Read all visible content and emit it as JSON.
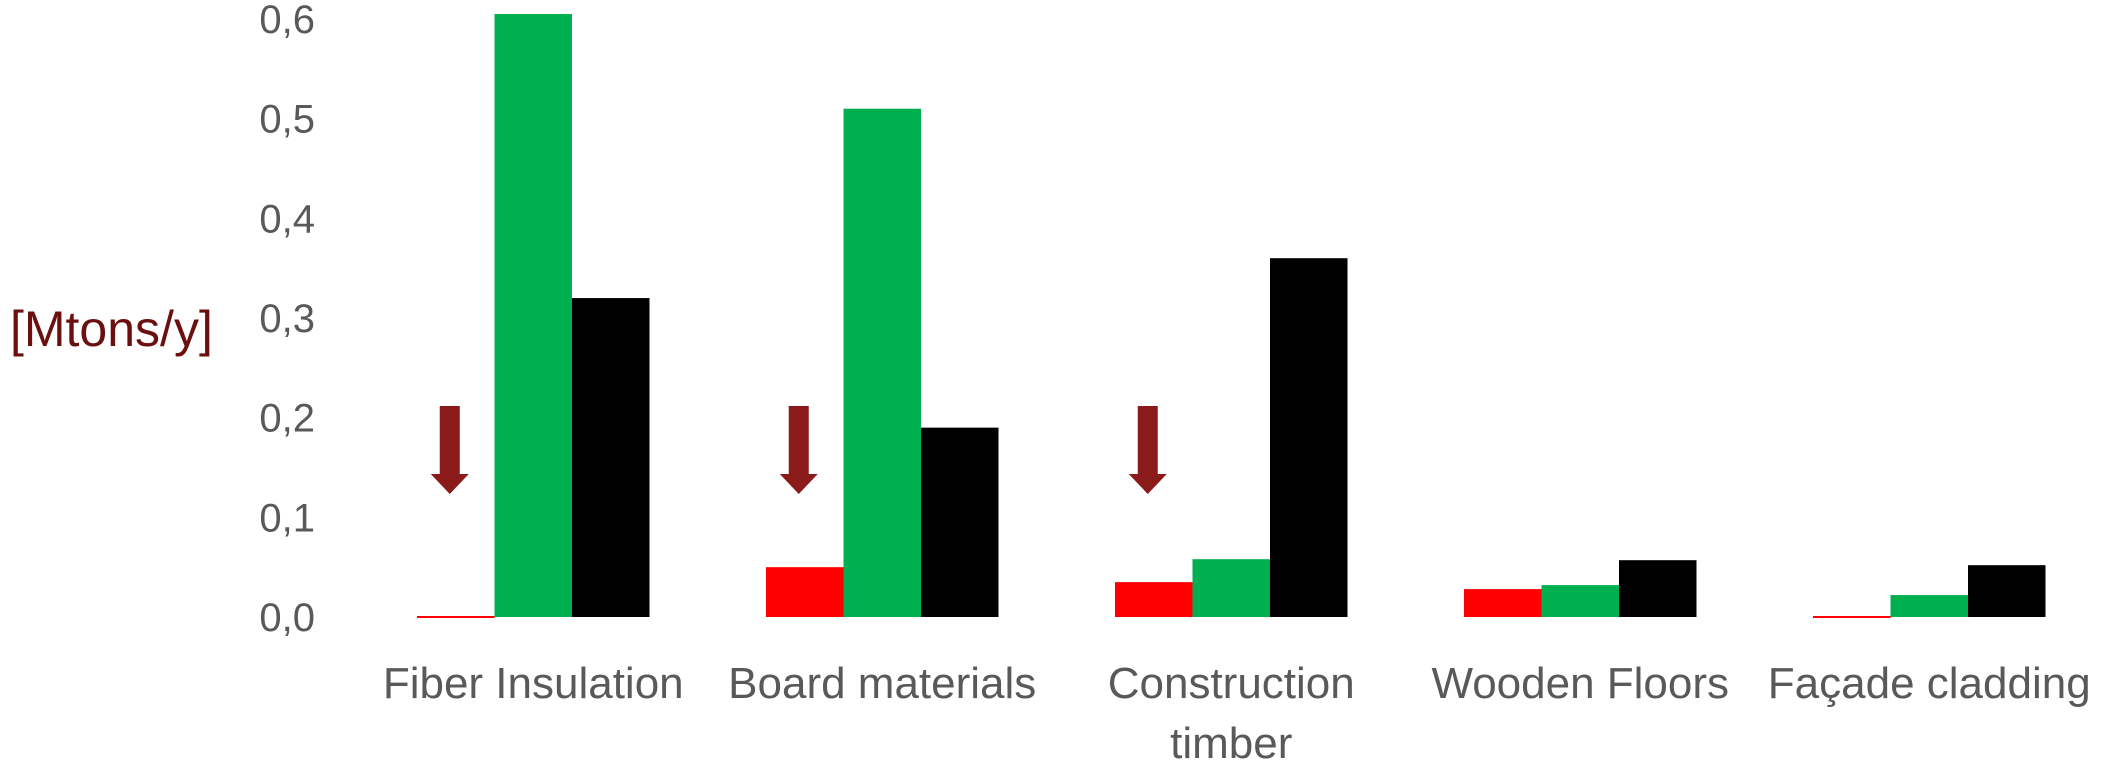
{
  "chart_data": {
    "type": "bar",
    "ylabel": "[Mtons/y]",
    "ylim": [
      0,
      0.6
    ],
    "yticks": [
      "0,0",
      "0,1",
      "0,2",
      "0,3",
      "0,4",
      "0,5",
      "0,6"
    ],
    "categories": [
      [
        "Fiber Insulation"
      ],
      [
        "Board materials"
      ],
      [
        "Construction",
        "timber"
      ],
      [
        "Wooden Floors"
      ],
      [
        "Façade cladding"
      ]
    ],
    "series": [
      {
        "color": "#ff0000",
        "values": [
          0.0,
          0.05,
          0.035,
          0.028,
          0.0
        ]
      },
      {
        "color": "#00b050",
        "values": [
          0.605,
          0.51,
          0.058,
          0.032,
          0.022
        ]
      },
      {
        "color": "#000000",
        "values": [
          0.32,
          0.19,
          0.36,
          0.057,
          0.052
        ]
      }
    ],
    "annotations": [
      {
        "type": "down-arrow",
        "category_index": 0,
        "color": "#8b1a1a"
      },
      {
        "type": "down-arrow",
        "category_index": 1,
        "color": "#8b1a1a"
      },
      {
        "type": "down-arrow",
        "category_index": 2,
        "color": "#8b1a1a"
      }
    ],
    "colors": {
      "axis_text": "#595959",
      "ylabel": "#6b0f0f"
    },
    "grid": false,
    "legend": "none"
  }
}
